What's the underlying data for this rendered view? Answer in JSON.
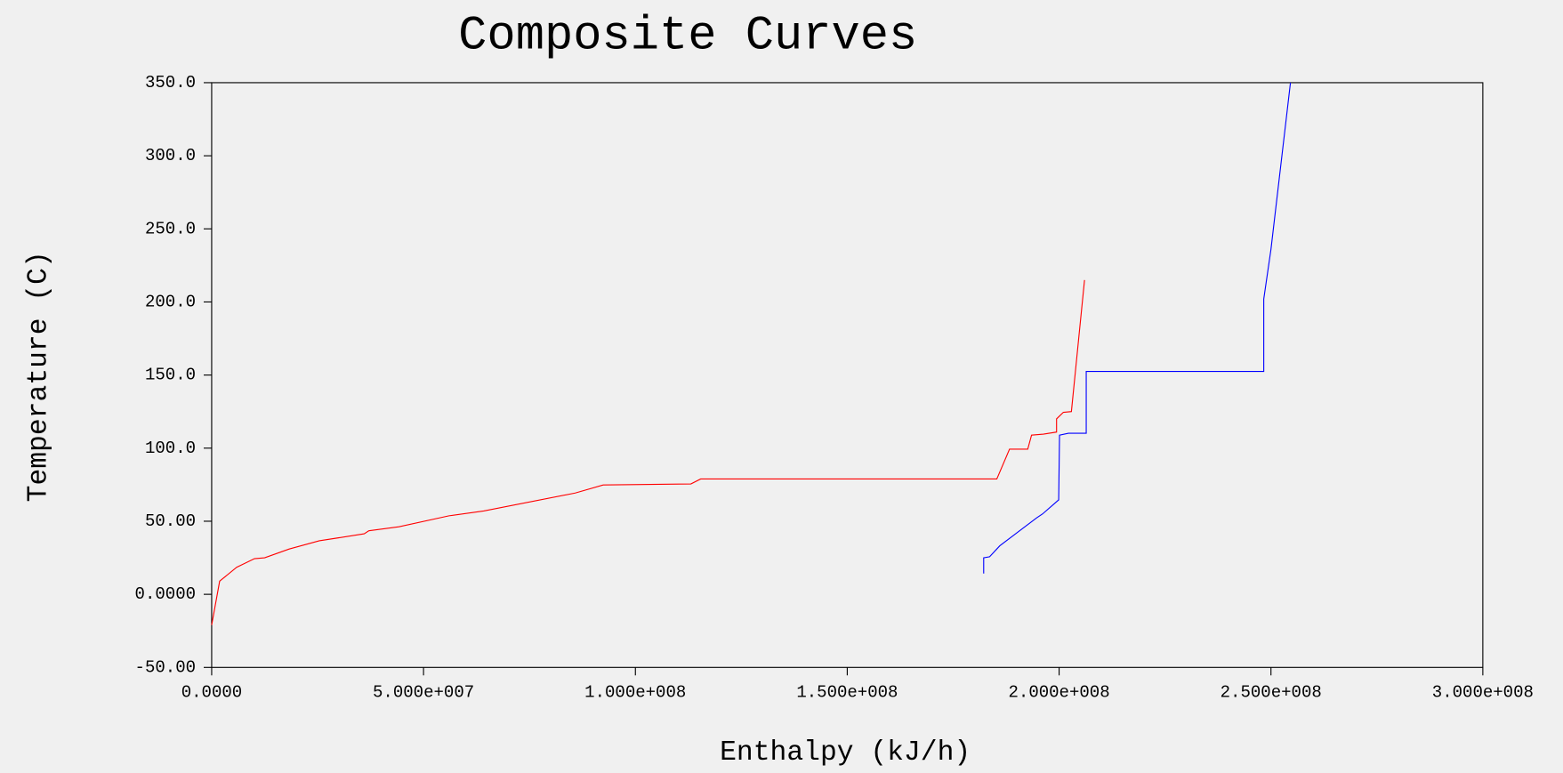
{
  "chart_data": {
    "type": "line",
    "title": "Composite Curves",
    "x_label": "Enthalpy (kJ/h)",
    "y_label": "Temperature (C)",
    "xlim": [
      0,
      300000000
    ],
    "ylim": [
      -50,
      350
    ],
    "xticks": [
      {
        "value": 0,
        "label": "0.0000"
      },
      {
        "value": 50000000,
        "label": "5.000e+007"
      },
      {
        "value": 100000000,
        "label": "1.000e+008"
      },
      {
        "value": 150000000,
        "label": "1.500e+008"
      },
      {
        "value": 200000000,
        "label": "2.000e+008"
      },
      {
        "value": 250000000,
        "label": "2.500e+008"
      },
      {
        "value": 300000000,
        "label": "3.000e+008"
      }
    ],
    "yticks": [
      {
        "value": -50,
        "label": "-50.00"
      },
      {
        "value": 0,
        "label": "0.0000"
      },
      {
        "value": 50,
        "label": "50.00"
      },
      {
        "value": 100,
        "label": "100.0"
      },
      {
        "value": 150,
        "label": "150.0"
      },
      {
        "value": 200,
        "label": "200.0"
      },
      {
        "value": 250,
        "label": "250.0"
      },
      {
        "value": 300,
        "label": "300.0"
      },
      {
        "value": 350,
        "label": "350.0"
      }
    ],
    "grid": false,
    "series": [
      {
        "color": "#ff0000",
        "x": [
          0,
          1880000,
          5900000,
          10100000,
          12500000,
          18300000,
          25400000,
          36000000,
          37100000,
          44200000,
          56000000,
          64200000,
          85800000,
          92400000,
          113100000,
          115400000,
          185300000,
          188300000,
          192600000,
          193500000,
          196300000,
          199400000,
          199400000,
          201000000,
          202900000,
          206000000
        ],
        "values": [
          -21,
          9,
          18.5,
          24.4,
          25,
          31,
          36.6,
          41.4,
          43.5,
          46.2,
          53.7,
          57,
          69.3,
          74.8,
          75.5,
          78.9,
          78.9,
          99.3,
          99.3,
          108.9,
          109.6,
          111,
          120,
          124.5,
          125,
          215
        ]
      },
      {
        "color": "#0000ff",
        "x": [
          182200000,
          182200000,
          183600000,
          186000000,
          194700000,
          196100000,
          199900000,
          200100000,
          202200000,
          206400000,
          206400000,
          248300000,
          248300000,
          250000000,
          254600000
        ],
        "values": [
          14.2,
          25,
          25.7,
          33.2,
          52.3,
          55,
          64.6,
          108.9,
          110.2,
          110.2,
          152.5,
          152.5,
          202,
          236,
          350
        ]
      }
    ]
  }
}
